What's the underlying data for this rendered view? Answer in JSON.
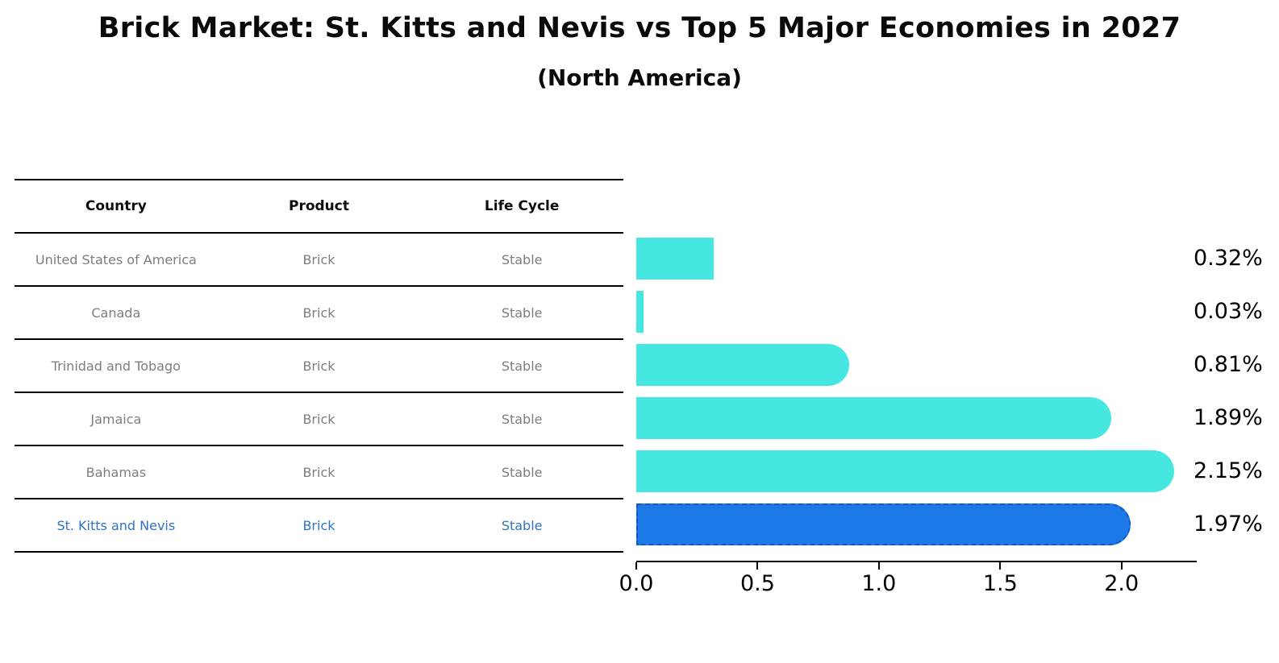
{
  "title": "Brick Market: St. Kitts and Nevis vs Top 5 Major Economies in 2027",
  "subtitle": "(North America)",
  "table": {
    "headers": [
      "Country",
      "Product",
      "Life Cycle"
    ],
    "rows": [
      {
        "country": "United States of America",
        "product": "Brick",
        "life_cycle": "Stable",
        "highlight": false
      },
      {
        "country": "Canada",
        "product": "Brick",
        "life_cycle": "Stable",
        "highlight": false
      },
      {
        "country": "Trinidad and Tobago",
        "product": "Brick",
        "life_cycle": "Stable",
        "highlight": false
      },
      {
        "country": "Jamaica",
        "product": "Brick",
        "life_cycle": "Stable",
        "highlight": false
      },
      {
        "country": "Bahamas",
        "product": "Brick",
        "life_cycle": "Stable",
        "highlight": false
      },
      {
        "country": "St. Kitts and Nevis",
        "product": "Brick",
        "life_cycle": "Stable",
        "highlight": true
      }
    ]
  },
  "chart_data": {
    "type": "bar",
    "orientation": "horizontal",
    "title": "Brick Market: St. Kitts and Nevis vs Top 5 Major Economies in 2027",
    "subtitle": "(North America)",
    "categories": [
      "United States of America",
      "Canada",
      "Trinidad and Tobago",
      "Jamaica",
      "Bahamas",
      "St. Kitts and Nevis"
    ],
    "values": [
      0.32,
      0.03,
      0.81,
      1.89,
      2.15,
      1.97
    ],
    "value_labels": [
      "0.32%",
      "0.03%",
      "0.81%",
      "1.89%",
      "2.15%",
      "1.97%"
    ],
    "x_ticks": [
      0.0,
      0.5,
      1.0,
      1.5,
      2.0
    ],
    "x_tick_labels": [
      "0.0",
      "0.5",
      "1.0",
      "1.5",
      "2.0"
    ],
    "xlim": [
      0,
      2.31
    ],
    "grid": false,
    "legend": false,
    "highlight_category": "St. Kitts and Nevis",
    "colors": {
      "bar": "#47e7e1",
      "highlight_bar": "#1c7ae8",
      "highlight_border": "#1356cf",
      "value_label": "#000000",
      "table_text": "#7d7d7d",
      "highlight_text": "#2d73c2"
    }
  }
}
